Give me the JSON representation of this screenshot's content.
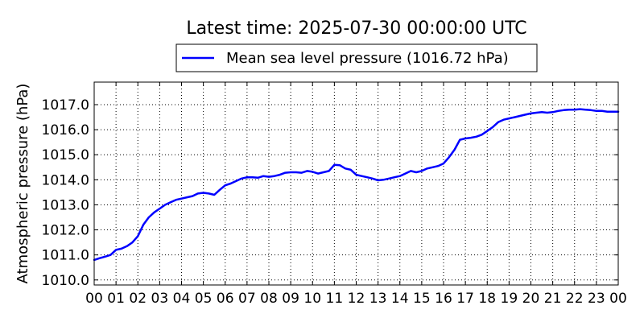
{
  "chart_data": {
    "type": "line",
    "title": "Latest time: 2025-07-30 00:00:00 UTC",
    "xlabel": "",
    "ylabel": "Atmospheric pressure (hPa)",
    "x_tick_labels": [
      "00",
      "01",
      "02",
      "03",
      "04",
      "05",
      "06",
      "07",
      "08",
      "09",
      "10",
      "11",
      "12",
      "13",
      "14",
      "15",
      "16",
      "17",
      "18",
      "19",
      "20",
      "21",
      "22",
      "23",
      "00"
    ],
    "y_tick_labels": [
      "1010.0",
      "1011.0",
      "1012.0",
      "1013.0",
      "1014.0",
      "1015.0",
      "1016.0",
      "1017.0"
    ],
    "xlim": [
      0,
      24
    ],
    "ylim": [
      1009.8,
      1017.9
    ],
    "grid": true,
    "legend_position": "top-center",
    "series": [
      {
        "name": "Mean sea level pressure (1016.72 hPa)",
        "color": "#0000ff",
        "x": [
          0,
          0.25,
          0.5,
          0.75,
          1.0,
          1.25,
          1.5,
          1.75,
          2.0,
          2.25,
          2.5,
          2.75,
          3.0,
          3.25,
          3.5,
          3.75,
          4.0,
          4.25,
          4.5,
          4.75,
          5.0,
          5.25,
          5.5,
          5.75,
          6.0,
          6.25,
          6.5,
          6.75,
          7.0,
          7.25,
          7.5,
          7.75,
          8.0,
          8.25,
          8.5,
          8.75,
          9.0,
          9.25,
          9.5,
          9.75,
          10.0,
          10.25,
          10.5,
          10.75,
          11.0,
          11.25,
          11.5,
          11.75,
          12.0,
          12.25,
          12.5,
          12.75,
          13.0,
          13.25,
          13.5,
          13.75,
          14.0,
          14.25,
          14.5,
          14.75,
          15.0,
          15.25,
          15.5,
          15.75,
          16.0,
          16.25,
          16.5,
          16.75,
          17.0,
          17.25,
          17.5,
          17.75,
          18.0,
          18.25,
          18.5,
          18.75,
          19.0,
          19.25,
          19.5,
          19.75,
          20.0,
          20.25,
          20.5,
          20.75,
          21.0,
          21.25,
          21.5,
          21.75,
          22.0,
          22.25,
          22.5,
          22.75,
          23.0,
          23.25,
          23.5,
          23.75,
          24.0
        ],
        "y": [
          1010.8,
          1010.87,
          1010.93,
          1011.0,
          1011.2,
          1011.25,
          1011.35,
          1011.5,
          1011.75,
          1012.2,
          1012.5,
          1012.7,
          1012.85,
          1013.0,
          1013.1,
          1013.2,
          1013.25,
          1013.3,
          1013.35,
          1013.45,
          1013.48,
          1013.45,
          1013.4,
          1013.6,
          1013.78,
          1013.85,
          1013.95,
          1014.05,
          1014.1,
          1014.1,
          1014.08,
          1014.15,
          1014.12,
          1014.15,
          1014.2,
          1014.28,
          1014.3,
          1014.3,
          1014.28,
          1014.35,
          1014.32,
          1014.25,
          1014.3,
          1014.35,
          1014.6,
          1014.58,
          1014.45,
          1014.4,
          1014.2,
          1014.15,
          1014.1,
          1014.05,
          1013.98,
          1014.0,
          1014.05,
          1014.1,
          1014.15,
          1014.25,
          1014.35,
          1014.3,
          1014.35,
          1014.45,
          1014.5,
          1014.55,
          1014.65,
          1014.9,
          1015.2,
          1015.6,
          1015.65,
          1015.68,
          1015.72,
          1015.8,
          1015.95,
          1016.1,
          1016.3,
          1016.4,
          1016.45,
          1016.5,
          1016.55,
          1016.6,
          1016.65,
          1016.68,
          1016.7,
          1016.68,
          1016.7,
          1016.75,
          1016.78,
          1016.8,
          1016.8,
          1016.82,
          1016.8,
          1016.78,
          1016.75,
          1016.75,
          1016.72,
          1016.72,
          1016.72
        ]
      }
    ]
  }
}
